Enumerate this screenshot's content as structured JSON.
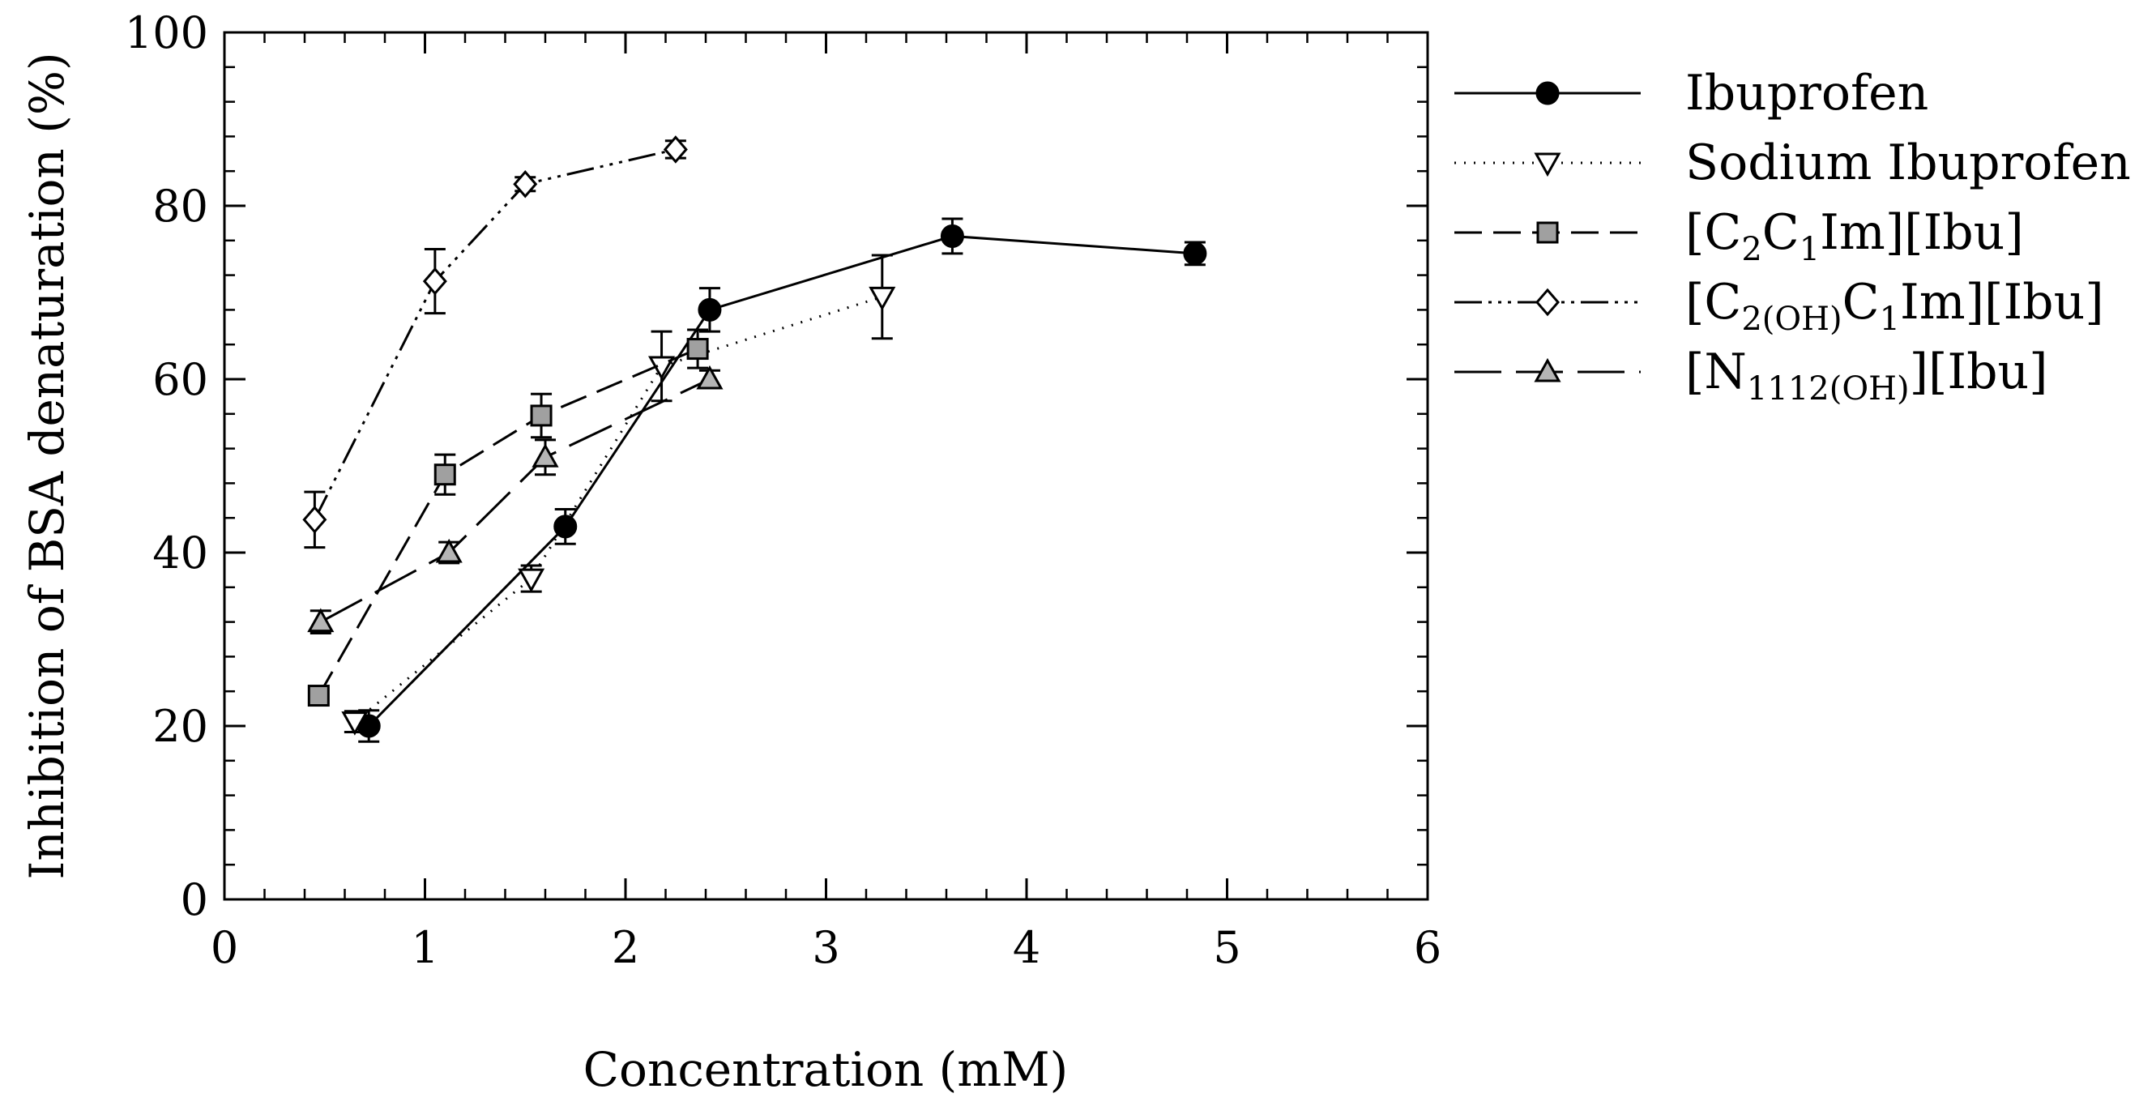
{
  "chart_data": {
    "type": "line",
    "xlabel": "Concentration (mM)",
    "ylabel": "Inhibition of BSA denaturation (%)",
    "xlim": [
      0,
      6
    ],
    "ylim": [
      0,
      100
    ],
    "xticks": [
      0,
      1,
      2,
      3,
      4,
      5,
      6
    ],
    "yticks": [
      0,
      20,
      40,
      60,
      80,
      100
    ],
    "x_tick_labels": [
      "0",
      "1",
      "2",
      "3",
      "4",
      "5",
      "6"
    ],
    "y_tick_labels": [
      "0",
      "20",
      "40",
      "60",
      "80",
      "100"
    ],
    "grid": false,
    "legend_position": "right",
    "series": [
      {
        "name": "Ibuprofen",
        "legend_parts": [
          {
            "t": "Ibuprofen"
          }
        ],
        "marker": "circle",
        "fill": "#000000",
        "dash": "",
        "x": [
          0.72,
          1.7,
          2.42,
          3.63,
          4.84
        ],
        "y": [
          20.0,
          43.0,
          68.0,
          76.5,
          74.5
        ],
        "err": [
          1.8,
          2.0,
          2.5,
          2.0,
          1.3
        ]
      },
      {
        "name": "Sodium Ibuprofen",
        "legend_parts": [
          {
            "t": "Sodium Ibuprofen"
          }
        ],
        "marker": "triangle-down",
        "fill": "#ffffff",
        "dash": "2,10",
        "x": [
          0.65,
          1.53,
          2.18,
          3.28
        ],
        "y": [
          20.5,
          37.0,
          61.5,
          69.5
        ],
        "err": [
          1.2,
          1.5,
          4.0,
          4.8
        ]
      },
      {
        "name": "[C2C1Im][Ibu]",
        "legend_parts": [
          {
            "t": "[C"
          },
          {
            "s": "2"
          },
          {
            "t": "C"
          },
          {
            "s": "1"
          },
          {
            "t": "Im][Ibu]"
          }
        ],
        "marker": "square",
        "fill": "#a0a0a0",
        "dash": "34,14",
        "x": [
          0.47,
          1.1,
          1.58,
          2.36
        ],
        "y": [
          23.5,
          49.0,
          55.8,
          63.5
        ],
        "err": [
          1.0,
          2.3,
          2.5,
          2.2
        ]
      },
      {
        "name": "[C2(OH)C1Im][Ibu]",
        "legend_parts": [
          {
            "t": "[C"
          },
          {
            "s": "2(OH)"
          },
          {
            "t": "C"
          },
          {
            "s": "1"
          },
          {
            "t": "Im][Ibu]"
          }
        ],
        "marker": "diamond",
        "fill": "#ffffff",
        "dash": "34,8,4,8,4,8,4,8",
        "x": [
          0.45,
          1.05,
          1.5,
          2.25
        ],
        "y": [
          43.8,
          71.3,
          82.5,
          86.5
        ],
        "err": [
          3.2,
          3.7,
          0.8,
          1.0
        ]
      },
      {
        "name": "[N1112(OH)][Ibu]",
        "legend_parts": [
          {
            "t": "[N"
          },
          {
            "s": "1112(OH)"
          },
          {
            "t": "][Ibu]"
          }
        ],
        "marker": "triangle-up",
        "fill": "#b5b5b5",
        "dash": "58,18",
        "x": [
          0.48,
          1.12,
          1.6,
          2.42
        ],
        "y": [
          32.0,
          40.0,
          51.0,
          60.0
        ],
        "err": [
          1.3,
          1.2,
          2.0,
          1.0
        ]
      }
    ]
  }
}
